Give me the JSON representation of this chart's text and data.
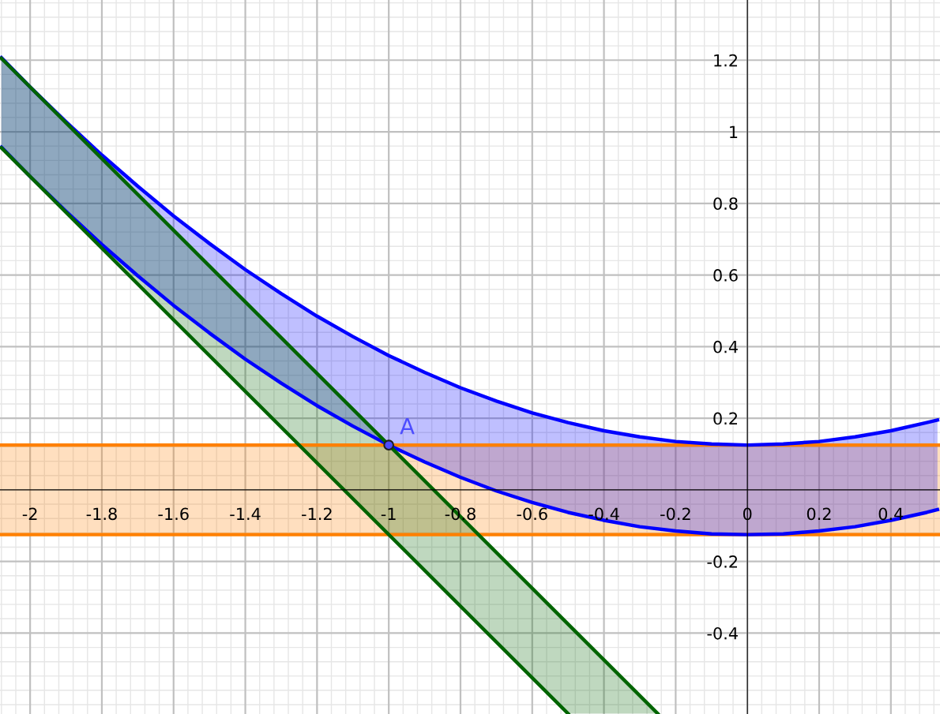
{
  "chart_data": {
    "type": "line",
    "xlim": [
      -2.084,
      0.537
    ],
    "ylim": [
      -0.626,
      1.368
    ],
    "xticks": [
      -2,
      -1.8,
      -1.6,
      -1.4,
      -1.2,
      -1,
      -0.8,
      -0.6,
      -0.4,
      -0.2,
      0,
      0.2,
      0.4
    ],
    "yticks": [
      -0.4,
      -0.2,
      0.2,
      0.4,
      0.6,
      0.8,
      1,
      1.2
    ],
    "grid": true,
    "bands": [
      {
        "axis": "y",
        "from": -0.125,
        "to": 0.125,
        "color": "#ff8000"
      }
    ],
    "ref_lines": [
      {
        "axis": "y",
        "value": 0.125,
        "color": "#ff8000"
      },
      {
        "axis": "y",
        "value": -0.125,
        "color": "#ff8000"
      }
    ],
    "series": [
      {
        "color": "#0000ff",
        "x": [
          -2.08,
          -2.0,
          -1.9,
          -1.8,
          -1.7,
          -1.6,
          -1.5,
          -1.4,
          -1.3,
          -1.2,
          -1.1,
          -1.0,
          -0.9,
          -0.8,
          -0.7,
          -0.6,
          -0.5,
          -0.4,
          -0.3,
          -0.2,
          -0.1,
          0,
          0.1,
          0.2,
          0.3,
          0.4,
          0.5,
          0.53
        ],
        "values": [
          1.207,
          1.125,
          1.028,
          0.935,
          0.848,
          0.765,
          0.688,
          0.615,
          0.548,
          0.485,
          0.428,
          0.375,
          0.328,
          0.285,
          0.248,
          0.215,
          0.188,
          0.165,
          0.148,
          0.135,
          0.128,
          0.125,
          0.128,
          0.135,
          0.148,
          0.165,
          0.188,
          0.195
        ],
        "upper": [
          1.207,
          1.125,
          1.028,
          0.935,
          0.848,
          0.765,
          0.688,
          0.615,
          0.548,
          0.485,
          0.428,
          0.375,
          0.328,
          0.285,
          0.248,
          0.215,
          0.188,
          0.165,
          0.148,
          0.135,
          0.128,
          0.125,
          0.128,
          0.135,
          0.148,
          0.165,
          0.188,
          0.195
        ],
        "lower": [
          0.957,
          0.875,
          0.778,
          0.685,
          0.598,
          0.515,
          0.438,
          0.365,
          0.298,
          0.235,
          0.178,
          0.125,
          0.078,
          0.035,
          -0.003,
          -0.035,
          -0.063,
          -0.085,
          -0.103,
          -0.115,
          -0.123,
          -0.125,
          -0.123,
          -0.115,
          -0.103,
          -0.085,
          -0.063,
          -0.055
        ]
      },
      {
        "color": "#0000ff",
        "x": [
          -2.08,
          -2.0,
          -1.9,
          -1.8,
          -1.7,
          -1.6,
          -1.5,
          -1.4,
          -1.3,
          -1.2,
          -1.1,
          -1.0,
          -0.9,
          -0.8,
          -0.7,
          -0.6,
          -0.5,
          -0.4,
          -0.3,
          -0.2,
          -0.1,
          0,
          0.1,
          0.2,
          0.3,
          0.4,
          0.5,
          0.53
        ],
        "values": [
          0.957,
          0.875,
          0.778,
          0.685,
          0.598,
          0.515,
          0.438,
          0.365,
          0.298,
          0.235,
          0.178,
          0.125,
          0.078,
          0.035,
          -0.003,
          -0.035,
          -0.063,
          -0.085,
          -0.103,
          -0.115,
          -0.123,
          -0.125,
          -0.123,
          -0.115,
          -0.103,
          -0.085,
          -0.063,
          -0.055
        ]
      },
      {
        "color": "#006400",
        "x": [
          -2.08,
          -0.5,
          -0.25
        ],
        "values": [
          1.205,
          -0.375,
          -0.625
        ],
        "upper": [
          1.205,
          -0.375,
          -0.625
        ],
        "lower": [
          0.955,
          -0.625,
          -0.625
        ]
      },
      {
        "color": "#006400",
        "x": [
          -2.08,
          -0.5
        ],
        "values": [
          0.955,
          -0.625
        ]
      },
      {
        "type": "scatter",
        "color": "#4d4dff",
        "x": [
          -1
        ],
        "values": [
          0.125
        ],
        "marker": "circle"
      }
    ],
    "annotations": [
      {
        "text": "A",
        "x": -1,
        "y": 0.125
      }
    ]
  }
}
